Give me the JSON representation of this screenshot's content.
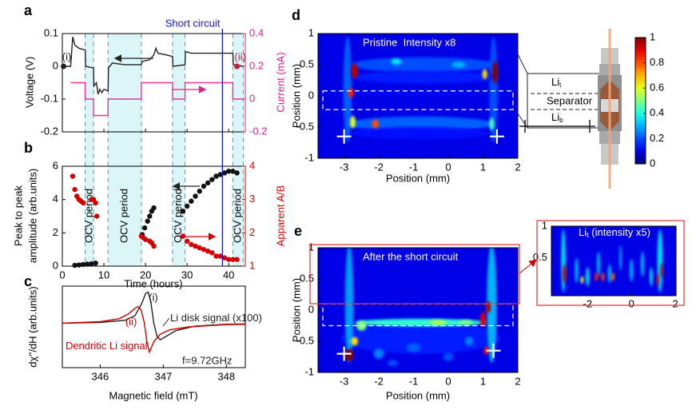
{
  "panel_labels": [
    "a",
    "b",
    "c",
    "d",
    "e"
  ],
  "time_markers": {
    "ocv_periods": [
      [
        5.5,
        7.5
      ],
      [
        11,
        19
      ],
      [
        26.5,
        29.5
      ],
      [
        41,
        43.5
      ]
    ],
    "ocv_label": "OCV period",
    "ocv_color": "#dcf6f8",
    "short_circuit": {
      "label": "Short circuit",
      "x": 38.5,
      "color": "#1414d2"
    }
  },
  "chart_data": [
    {
      "type": "line",
      "xlim": [
        0,
        44
      ],
      "xticks": [
        0,
        10,
        20,
        30,
        40
      ],
      "ylim": [
        -0.2,
        0.1
      ],
      "yticks": [
        -0.2,
        -0.1,
        0,
        0.1
      ],
      "y2lim": [
        -0.2,
        0.4
      ],
      "y2ticks": [
        -0.2,
        0,
        0.2,
        0.4
      ],
      "ylabel": "Voltage (V)",
      "y2label": "Current (mA)",
      "y2color": "#e0218a",
      "series": [
        {
          "color": "#222222",
          "x": [
            0.3,
            2,
            2.5,
            3,
            4,
            5.5,
            5.6,
            7.5,
            7.6,
            8.2,
            8.6,
            9,
            9.5,
            10,
            11,
            11.1,
            12,
            15,
            19,
            19.2,
            21,
            22,
            22.5,
            23,
            25,
            26.5,
            26.6,
            29.5,
            29.6,
            31,
            35,
            38,
            41,
            41.1,
            43.5
          ],
          "values": [
            0,
            0,
            0.09,
            0.065,
            0.055,
            0.05,
            0,
            -0.005,
            -0.06,
            -0.05,
            -0.085,
            -0.07,
            -0.08,
            -0.07,
            -0.075,
            -0.005,
            0.01,
            0.005,
            0.005,
            0.015,
            0.02,
            0.035,
            0.055,
            0.04,
            0.035,
            0.03,
            0,
            0.005,
            0.045,
            0.04,
            0.04,
            0.04,
            0.04,
            0.005,
            0
          ]
        },
        {
          "color": "#e8339a",
          "axis": "y2",
          "x": [
            2,
            5.5,
            5.5,
            7.5,
            7.5,
            11,
            11,
            19,
            19,
            26.5,
            26.5,
            29.5,
            29.5,
            41,
            41,
            43.5
          ],
          "values": [
            0.1,
            0.1,
            0,
            0,
            -0.1,
            -0.1,
            0,
            0,
            0.1,
            0.1,
            0,
            0,
            0.1,
            0.1,
            0,
            0
          ]
        }
      ],
      "labeled_points": [
        {
          "text": "(i)",
          "x": 0.3,
          "y": 0,
          "color": "#222222"
        },
        {
          "text": "(ii)",
          "x": 42,
          "y": 0.2,
          "axis": "y2",
          "color": "#c0203a"
        }
      ]
    },
    {
      "type": "scatter",
      "xlabel": "Time (hours)",
      "ylabel": [
        "Peak to peak",
        "amplitude (arb.units)"
      ],
      "y2label": "Apparent A/B",
      "y2color": "#d40000",
      "xlim": [
        0,
        44
      ],
      "xticks": [
        0,
        10,
        20,
        30,
        40
      ],
      "ylim": [
        0,
        6
      ],
      "yticks": [
        0,
        2,
        4,
        6
      ],
      "y2lim": [
        1,
        4
      ],
      "y2ticks": [
        1,
        2,
        3,
        4
      ],
      "series": [
        {
          "color": "#111111",
          "x": [
            3,
            4,
            5,
            6,
            7,
            8,
            19.2,
            19.8,
            20.5,
            21,
            21.5,
            22,
            29,
            30,
            31,
            32,
            33,
            34,
            35,
            36,
            37,
            38,
            39,
            40,
            41,
            42
          ],
          "values": [
            0.05,
            0.07,
            0.1,
            0.12,
            0.14,
            0.18,
            1.9,
            2.3,
            2.7,
            3.0,
            3.3,
            3.5,
            3.3,
            3.6,
            3.9,
            4.2,
            4.5,
            4.8,
            5.0,
            5.2,
            5.4,
            5.5,
            5.6,
            5.7,
            5.7,
            5.6
          ]
        },
        {
          "color": "#d40000",
          "axis": "y2",
          "x": [
            2.5,
            3,
            3.5,
            4,
            4.5,
            5,
            7,
            7.5,
            8,
            8.3,
            19,
            19.5,
            20,
            21,
            21.5,
            22,
            29,
            30,
            31,
            32,
            33,
            34,
            35,
            36,
            37,
            38,
            39,
            40,
            41,
            42
          ],
          "values": [
            3.7,
            3.3,
            3.1,
            3.0,
            2.95,
            2.9,
            3.0,
            3.0,
            2.9,
            2.5,
            1.9,
            1.85,
            1.8,
            1.75,
            1.7,
            1.6,
            1.9,
            1.75,
            1.65,
            1.6,
            1.55,
            1.5,
            1.45,
            1.4,
            1.3,
            1.3,
            1.25,
            1.2,
            1.2,
            1.2
          ]
        }
      ]
    },
    {
      "type": "line",
      "xlabel": "Magnetic field (mT)",
      "ylabel": "dχ''/dH (arb.units)",
      "xlim": [
        345.4,
        348.3
      ],
      "xticks": [
        346,
        347,
        348
      ],
      "ylim": [
        -1.2,
        1
      ],
      "series": [
        {
          "color": "#222222",
          "x": [
            345.4,
            346,
            346.4,
            346.55,
            346.65,
            346.72,
            346.76,
            346.8,
            346.85,
            346.9,
            346.95,
            347.05,
            347.2,
            347.5,
            348,
            348.3
          ],
          "values": [
            0,
            0.02,
            0.08,
            0.2,
            0.5,
            0.8,
            0.84,
            0.6,
            0,
            -0.35,
            -0.45,
            -0.35,
            -0.2,
            -0.08,
            -0.03,
            -0.02
          ]
        },
        {
          "color": "#d40000",
          "x": [
            345.4,
            346,
            346.3,
            346.45,
            346.55,
            346.6,
            346.65,
            346.7,
            346.74,
            346.78,
            346.85,
            346.95,
            347.1,
            347.4,
            348,
            348.3
          ],
          "values": [
            0,
            0.04,
            0.12,
            0.25,
            0.4,
            0.45,
            0.35,
            0,
            -0.5,
            -0.78,
            -0.5,
            -0.3,
            -0.18,
            -0.1,
            -0.04,
            -0.03
          ]
        }
      ],
      "annotations": [
        {
          "text": "(i)",
          "x": 346.77,
          "y": 0.67,
          "color": "#222222"
        },
        {
          "text": "(ii)",
          "x": 346.4,
          "y": 0.02,
          "color": "#d40000"
        },
        {
          "text": "Li disk signal (x100)",
          "x": 347.11,
          "y": 0.13,
          "color": "#222222"
        },
        {
          "text": "Dendritic Li signal",
          "x": 345.45,
          "y": -0.63,
          "color": "#d40000"
        },
        {
          "text": "f=9.72GHz",
          "x": 347.3,
          "y": -1.03,
          "color": "#222222"
        }
      ]
    },
    {
      "type": "heatmap",
      "title": "Pristine  Intensity x8",
      "xlabel": "Position (mm)",
      "ylabel": "Position (mm)",
      "xlim": [
        -3.75,
        2
      ],
      "xticks": [
        -3,
        -2,
        -1,
        0,
        1,
        2
      ],
      "ylim": [
        -1,
        1
      ],
      "yticks": [
        -1,
        -0.5,
        0,
        0.5,
        1
      ],
      "background": 0.1,
      "separator": [
        0.08,
        -0.22
      ],
      "crosses": [
        [
          -3,
          -0.65
        ],
        [
          1.4,
          -0.65
        ]
      ],
      "spots": [
        [
          -2.9,
          0.1,
          0.12,
          0.85,
          0.22
        ],
        [
          1.3,
          0.1,
          0.12,
          0.85,
          0.2
        ],
        [
          -0.7,
          0.5,
          2.1,
          0.12,
          0.2
        ],
        [
          -0.7,
          0.3,
          2.1,
          0.1,
          0.15
        ],
        [
          -0.8,
          -0.45,
          2.1,
          0.12,
          0.22
        ],
        [
          -0.8,
          -0.6,
          2.0,
          0.1,
          0.14
        ],
        [
          -1,
          0.05,
          1.8,
          0.05,
          0.12
        ],
        [
          -1.5,
          0.55,
          0.15,
          0.05,
          0.35
        ],
        [
          0.3,
          0.5,
          0.2,
          0.05,
          0.3
        ],
        [
          1.25,
          -0.45,
          0.07,
          0.1,
          0.45
        ],
        [
          -2.75,
          -0.42,
          0.08,
          0.1,
          0.6
        ],
        [
          1.05,
          0.35,
          0.07,
          0.08,
          0.65
        ],
        [
          -2.1,
          -0.45,
          0.1,
          0.07,
          0.8
        ],
        [
          -2.8,
          0.05,
          0.08,
          0.08,
          0.85
        ],
        [
          -2.7,
          0.4,
          0.1,
          0.12,
          0.95
        ],
        [
          1.35,
          0.38,
          0.08,
          0.18,
          1
        ]
      ]
    },
    {
      "type": "heatmap",
      "title": "After the short circuit",
      "xlabel": "Position (mm)",
      "ylabel": "Position (mm)",
      "xlim": [
        -3.75,
        2
      ],
      "xticks": [
        -3,
        -2,
        -1,
        0,
        1,
        2
      ],
      "ylim": [
        -1,
        1
      ],
      "yticks": [
        -1,
        -0.5,
        0,
        0.5,
        1
      ],
      "background": 0.1,
      "separator": [
        0.1,
        -0.25
      ],
      "crosses": [
        [
          -3,
          -0.7
        ],
        [
          1.3,
          -0.65
        ]
      ],
      "spots": [
        [
          -0.8,
          -0.45,
          2.3,
          0.25,
          0.15
        ],
        [
          -2.85,
          0.1,
          0.12,
          0.95,
          0.28
        ],
        [
          1.25,
          0.1,
          0.14,
          0.95,
          0.3
        ],
        [
          -0.8,
          -0.2,
          1.9,
          0.06,
          0.42
        ],
        [
          -2,
          -0.7,
          0.15,
          0.08,
          0.25
        ],
        [
          -1,
          -0.6,
          0.2,
          0.07,
          0.22
        ],
        [
          0,
          -0.75,
          0.15,
          0.07,
          0.2
        ],
        [
          0.6,
          -0.5,
          0.12,
          0.07,
          0.25
        ],
        [
          -1.6,
          -0.85,
          0.15,
          0.05,
          0.2
        ],
        [
          -2.5,
          -0.25,
          0.15,
          0.08,
          0.5
        ],
        [
          0.5,
          -0.2,
          0.2,
          0.04,
          0.5
        ],
        [
          -0.3,
          -0.2,
          0.25,
          0.04,
          0.55
        ],
        [
          -2.7,
          -0.5,
          0.1,
          0.07,
          0.65
        ],
        [
          1.1,
          -0.65,
          0.08,
          0.06,
          0.85
        ],
        [
          1.0,
          -0.15,
          0.08,
          0.12,
          0.9
        ],
        [
          1.15,
          0.05,
          0.07,
          0.1,
          0.95
        ],
        [
          -2.85,
          -0.72,
          0.12,
          0.1,
          1
        ]
      ]
    },
    {
      "type": "heatmap",
      "title": {
        "base": "Li",
        "sub": "t",
        "rest": " (intensity x5)"
      },
      "xlim": [
        -3.65,
        2.03
      ],
      "xticks": [
        -2,
        0,
        2
      ],
      "ylim": [
        -0.1,
        1
      ],
      "yticks": [
        0.5,
        1
      ],
      "background": 0.1,
      "spots": [
        [
          -3.1,
          0.45,
          0.1,
          0.5,
          0.35
        ],
        [
          1.3,
          0.45,
          0.12,
          0.5,
          0.35
        ],
        [
          -2.5,
          0.3,
          0.08,
          0.2,
          0.3
        ],
        [
          -2,
          0.2,
          0.08,
          0.15,
          0.35
        ],
        [
          -1.5,
          0.4,
          0.08,
          0.2,
          0.3
        ],
        [
          -1,
          0.25,
          0.08,
          0.15,
          0.3
        ],
        [
          -0.5,
          0.5,
          0.06,
          0.2,
          0.28
        ],
        [
          0,
          0.3,
          0.08,
          0.18,
          0.3
        ],
        [
          0.5,
          0.4,
          0.08,
          0.2,
          0.3
        ],
        [
          0.9,
          0.2,
          0.07,
          0.15,
          0.35
        ],
        [
          -2.25,
          0.15,
          0.07,
          0.06,
          0.6
        ],
        [
          -0.85,
          0.2,
          0.07,
          0.07,
          0.75
        ],
        [
          -1.3,
          0.2,
          0.07,
          0.07,
          0.8
        ],
        [
          -1.6,
          0.2,
          0.08,
          0.07,
          0.85
        ],
        [
          1.2,
          0.15,
          0.06,
          0.1,
          0.9
        ],
        [
          -3.05,
          0.25,
          0.08,
          0.15,
          0.95
        ],
        [
          1.38,
          0.3,
          0.06,
          0.12,
          0.95
        ]
      ]
    }
  ],
  "colorbar": {
    "lim": [
      0,
      1
    ],
    "ticks": [
      0,
      0.2,
      0.4,
      0.6,
      0.8,
      1
    ]
  },
  "schematic": {
    "top": {
      "base": "Li",
      "sub": "t"
    },
    "separator": "Separator",
    "bottom": {
      "base": "Li",
      "sub": "b"
    }
  }
}
